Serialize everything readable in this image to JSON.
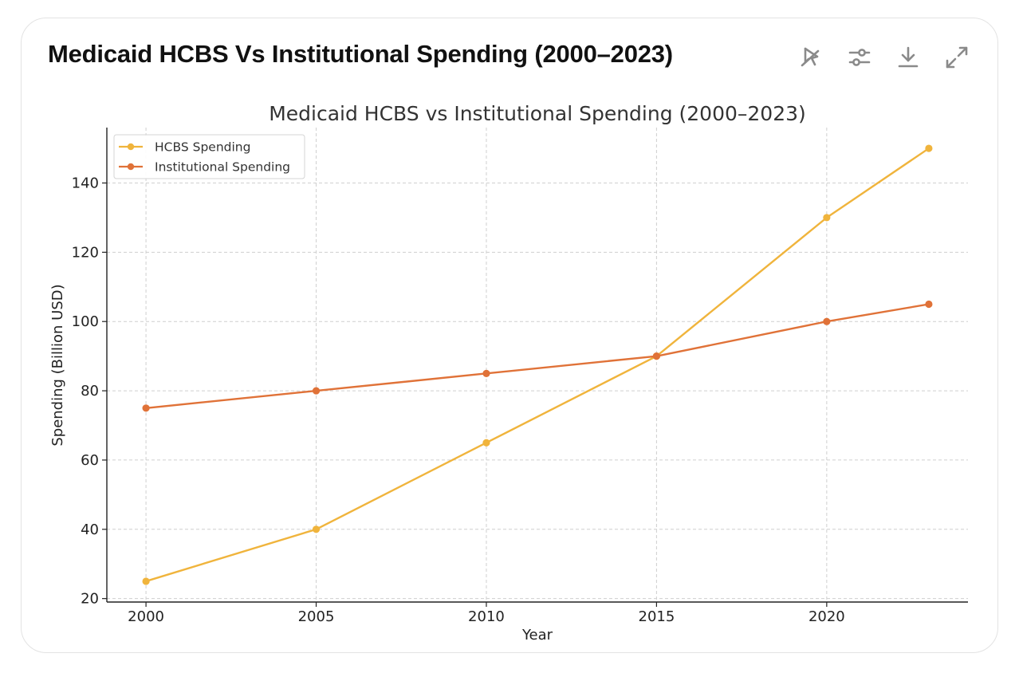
{
  "header": {
    "title": "Medicaid HCBS Vs Institutional Spending (2000–2023)"
  },
  "toolbar": {
    "buttons": [
      {
        "name": "interactive-toggle-button",
        "icon": "cursor-off-icon"
      },
      {
        "name": "chart-settings-button",
        "icon": "sliders-icon"
      },
      {
        "name": "download-button",
        "icon": "download-icon"
      },
      {
        "name": "expand-button",
        "icon": "expand-icon"
      }
    ]
  },
  "chart_data": {
    "type": "line",
    "title": "Medicaid HCBS vs Institutional Spending (2000–2023)",
    "xlabel": "Year",
    "ylabel": "Spending (Billion USD)",
    "x": [
      2000,
      2005,
      2010,
      2015,
      2020,
      2023
    ],
    "xticks": [
      "2000",
      "2005",
      "2010",
      "2015",
      "2020"
    ],
    "yticks": [
      "20",
      "40",
      "60",
      "80",
      "100",
      "120",
      "140"
    ],
    "xlim": [
      1998.85,
      2024.15
    ],
    "ylim": [
      19,
      156
    ],
    "grid": true,
    "legend_position": "top-left",
    "series": [
      {
        "name": "HCBS Spending",
        "color": "#f0b43c",
        "values": [
          25,
          40,
          65,
          90,
          130,
          150
        ]
      },
      {
        "name": "Institutional Spending",
        "color": "#e07238",
        "values": [
          75,
          80,
          85,
          90,
          100,
          105
        ]
      }
    ]
  }
}
